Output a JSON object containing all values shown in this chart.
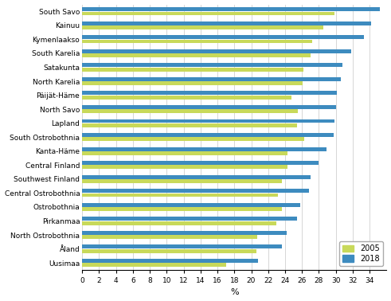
{
  "regions": [
    "South Savo",
    "Kainuu",
    "Kymenlaakso",
    "South Karelia",
    "Satakunta",
    "North Karelia",
    "Päijät-Häme",
    "North Savo",
    "Lapland",
    "South Ostrobothnia",
    "Kanta-Häme",
    "Central Finland",
    "Southwest Finland",
    "Central Ostrobothnia",
    "Ostrobothnia",
    "Pirkanmaa",
    "North Ostrobothnia",
    "Åland",
    "Uusimaa"
  ],
  "values_2005": [
    29.8,
    28.5,
    27.2,
    27.0,
    26.2,
    26.1,
    24.8,
    25.5,
    25.4,
    26.3,
    24.3,
    24.3,
    23.6,
    23.2,
    23.6,
    23.0,
    20.7,
    20.6,
    17.0
  ],
  "values_2018": [
    35.2,
    34.2,
    33.3,
    31.8,
    30.8,
    30.6,
    30.1,
    30.0,
    29.8,
    29.7,
    28.9,
    28.0,
    27.0,
    26.8,
    25.8,
    25.4,
    24.2,
    23.6,
    20.8
  ],
  "color_2005": "#c8d95a",
  "color_2018": "#3d8bbf",
  "xlabel": "%",
  "xlim": [
    0,
    36
  ],
  "xticks": [
    0,
    2,
    4,
    6,
    8,
    10,
    12,
    14,
    16,
    18,
    20,
    22,
    24,
    26,
    28,
    30,
    32,
    34
  ],
  "legend_2005": "2005",
  "legend_2018": "2018",
  "background_color": "#ffffff",
  "grid_color": "#d0d0d0"
}
